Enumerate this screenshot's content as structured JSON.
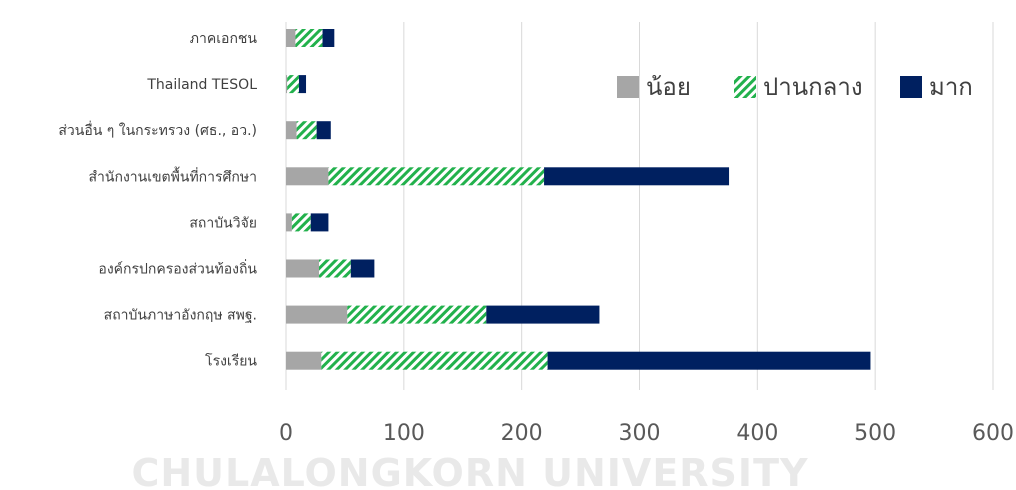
{
  "watermark": "CHULALONGKORN UNIVERSITY",
  "chart_data": {
    "type": "bar",
    "orientation": "horizontal",
    "stacked": true,
    "title": "",
    "xlabel": "",
    "ylabel": "",
    "categories": [
      "ภาคเอกชน",
      "Thailand TESOL",
      "ส่วนอื่น ๆ ในกระทรวง (ศธ., อว.)",
      "สำนักงานเขตพื้นที่การศึกษา",
      "สถาบันวิจัย",
      "องค์กรปกครองส่วนท้องถิ่น",
      "สถาบันภาษาอังกฤษ สพฐ.",
      "โรงเรียน"
    ],
    "series": [
      {
        "name": "น้อย",
        "color": "#a6a6a6",
        "pattern": "solid",
        "values": [
          8,
          1,
          9,
          36,
          5,
          28,
          52,
          30
        ]
      },
      {
        "name": "ปานกลาง",
        "color": "#22b14c",
        "pattern": "diagonal-hatch",
        "values": [
          23,
          10,
          17,
          183,
          16,
          27,
          118,
          192
        ]
      },
      {
        "name": "มาก",
        "color": "#002060",
        "pattern": "solid",
        "values": [
          10,
          6,
          12,
          157,
          15,
          20,
          96,
          274
        ]
      }
    ],
    "xlim": [
      0,
      600
    ],
    "xticks": [
      0,
      100,
      200,
      300,
      400,
      500,
      600
    ],
    "grid": true,
    "legend": "top-right"
  }
}
